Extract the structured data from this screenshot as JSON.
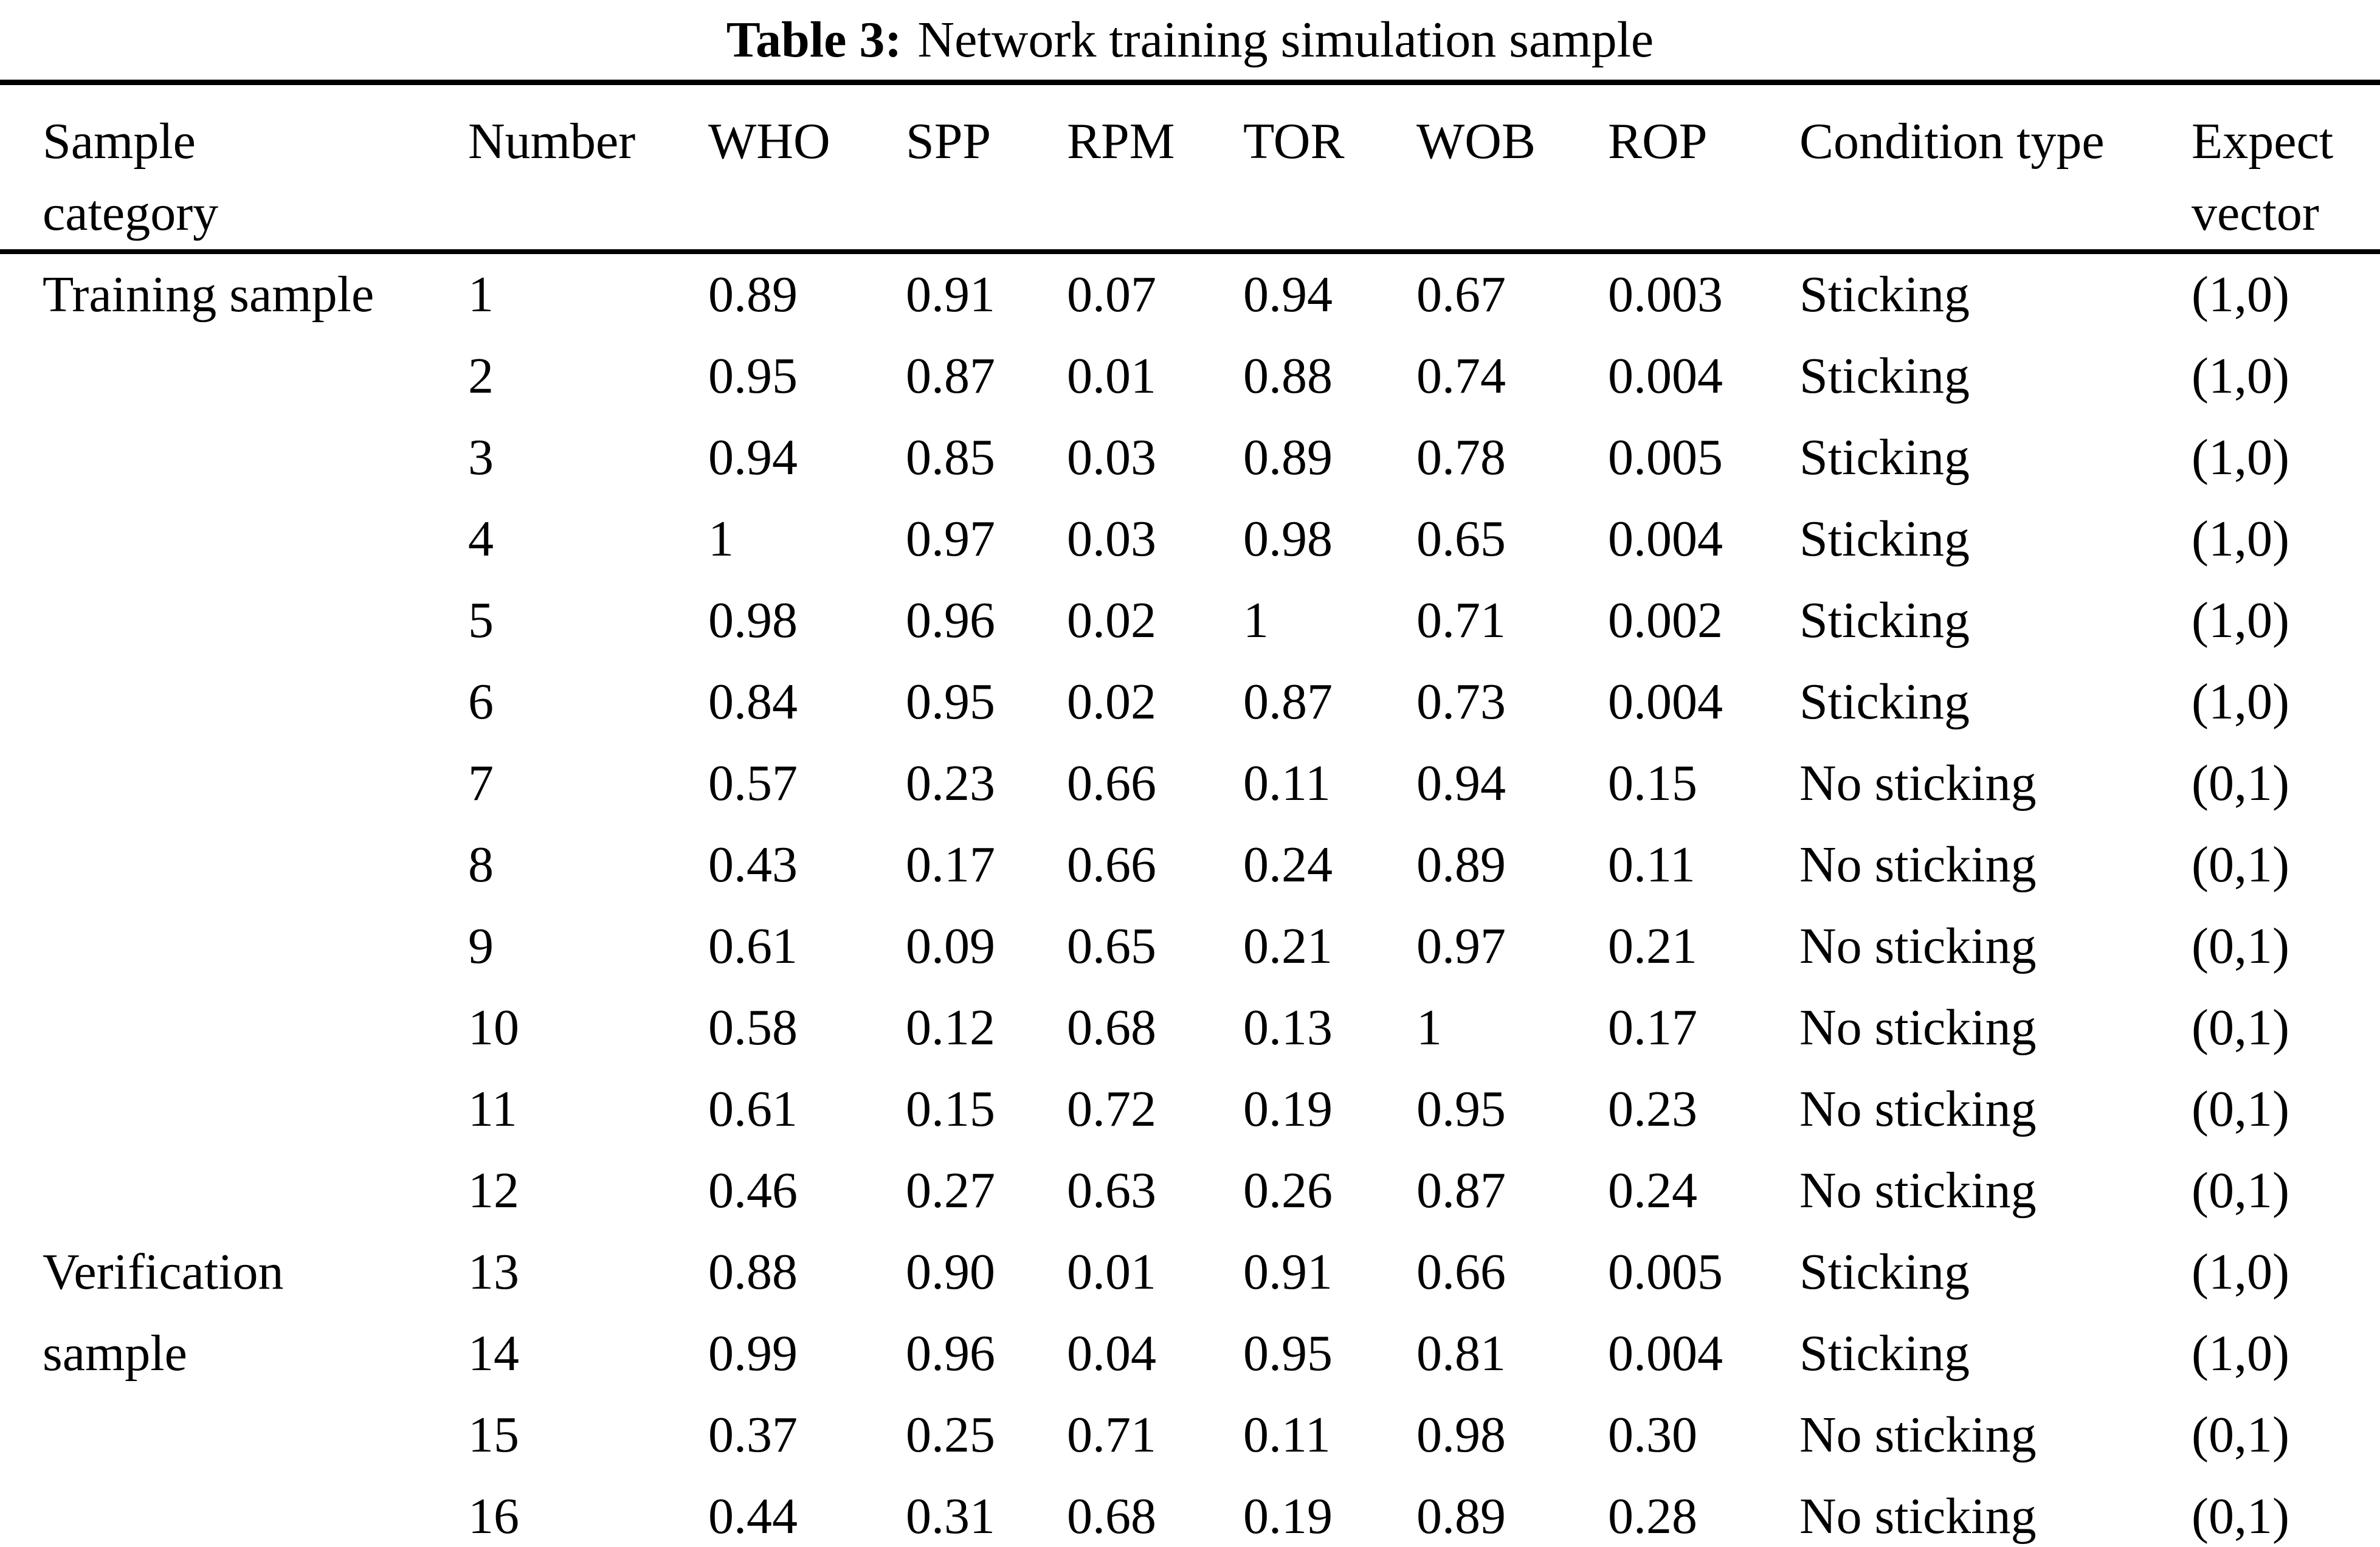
{
  "title": {
    "label": "Table 3:",
    "text": "Network training simulation sample"
  },
  "table": {
    "headers": [
      "Sample\ncategory",
      "Number",
      "WHO",
      "SPP",
      "RPM",
      "TOR",
      "WOB",
      "ROP",
      "Condition type",
      "Expect\nvector"
    ],
    "column_keys": [
      "category",
      "number",
      "who",
      "spp",
      "rpm",
      "tor",
      "wob",
      "rop",
      "condition",
      "expect"
    ],
    "groups": [
      {
        "category": "Training sample",
        "rows": [
          [
            "1",
            "0.89",
            "0.91",
            "0.07",
            "0.94",
            "0.67",
            "0.003",
            "Sticking",
            "(1,0)"
          ],
          [
            "2",
            "0.95",
            "0.87",
            "0.01",
            "0.88",
            "0.74",
            "0.004",
            "Sticking",
            "(1,0)"
          ],
          [
            "3",
            "0.94",
            "0.85",
            "0.03",
            "0.89",
            "0.78",
            "0.005",
            "Sticking",
            "(1,0)"
          ],
          [
            "4",
            "1",
            "0.97",
            "0.03",
            "0.98",
            "0.65",
            "0.004",
            "Sticking",
            "(1,0)"
          ],
          [
            "5",
            "0.98",
            "0.96",
            "0.02",
            "1",
            "0.71",
            "0.002",
            "Sticking",
            "(1,0)"
          ],
          [
            "6",
            "0.84",
            "0.95",
            "0.02",
            "0.87",
            "0.73",
            "0.004",
            "Sticking",
            "(1,0)"
          ],
          [
            "7",
            "0.57",
            "0.23",
            "0.66",
            "0.11",
            "0.94",
            "0.15",
            "No sticking",
            "(0,1)"
          ],
          [
            "8",
            "0.43",
            "0.17",
            "0.66",
            "0.24",
            "0.89",
            "0.11",
            "No sticking",
            "(0,1)"
          ],
          [
            "9",
            "0.61",
            "0.09",
            "0.65",
            "0.21",
            "0.97",
            "0.21",
            "No sticking",
            "(0,1)"
          ],
          [
            "10",
            "0.58",
            "0.12",
            "0.68",
            "0.13",
            "1",
            "0.17",
            "No sticking",
            "(0,1)"
          ],
          [
            "11",
            "0.61",
            "0.15",
            "0.72",
            "0.19",
            "0.95",
            "0.23",
            "No sticking",
            "(0,1)"
          ],
          [
            "12",
            "0.46",
            "0.27",
            "0.63",
            "0.26",
            "0.87",
            "0.24",
            "No sticking",
            "(0,1)"
          ]
        ]
      },
      {
        "category": "Verification\nsample",
        "rows": [
          [
            "13",
            "0.88",
            "0.90",
            "0.01",
            "0.91",
            "0.66",
            "0.005",
            "Sticking",
            "(1,0)"
          ],
          [
            "14",
            "0.99",
            "0.96",
            "0.04",
            "0.95",
            "0.81",
            "0.004",
            "Sticking",
            "(1,0)"
          ],
          [
            "15",
            "0.37",
            "0.25",
            "0.71",
            "0.11",
            "0.98",
            "0.30",
            "No sticking",
            "(0,1)"
          ],
          [
            "16",
            "0.44",
            "0.31",
            "0.68",
            "0.19",
            "0.89",
            "0.28",
            "No sticking",
            "(0,1)"
          ]
        ]
      }
    ]
  },
  "colors": {
    "text": "#000000",
    "background": "#ffffff",
    "rule": "#000000"
  }
}
